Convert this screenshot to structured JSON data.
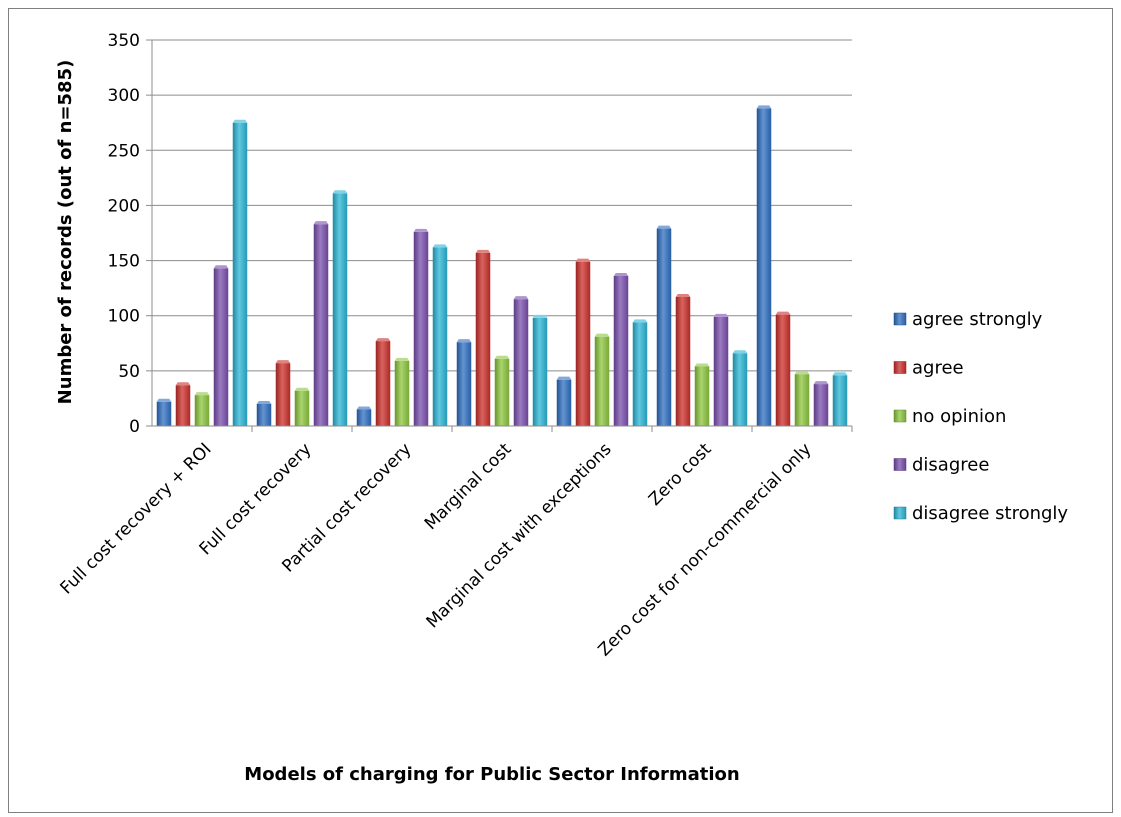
{
  "chart_data": {
    "type": "bar",
    "xlabel": "Models of charging for Public Sector Information",
    "ylabel": "Number of records (out of n=585)",
    "ylim": [
      0,
      350
    ],
    "yticks": [
      0,
      50,
      100,
      150,
      200,
      250,
      300,
      350
    ],
    "grid": true,
    "legend_position": "right",
    "categories": [
      "Full cost recovery + ROI",
      "Full cost recovery",
      "Partial cost recovery",
      "Marginal cost",
      "Marginal cost with exceptions",
      "Zero cost",
      "Zero cost for non-commercial only"
    ],
    "series": [
      {
        "name": "agree strongly",
        "color": "#2f6fc2",
        "values": [
          22,
          20,
          15,
          76,
          42,
          179,
          288
        ]
      },
      {
        "name": "agree",
        "color": "#cc2f2a",
        "values": [
          37,
          57,
          77,
          157,
          149,
          117,
          101
        ]
      },
      {
        "name": "no opinion",
        "color": "#8cc63e",
        "values": [
          28,
          32,
          59,
          61,
          81,
          54,
          47
        ]
      },
      {
        "name": "disagree",
        "color": "#7a4fae",
        "values": [
          143,
          183,
          176,
          115,
          136,
          99,
          38
        ]
      },
      {
        "name": "disagree strongly",
        "color": "#2bb5d6",
        "values": [
          275,
          211,
          162,
          98,
          94,
          66,
          46
        ]
      }
    ]
  }
}
